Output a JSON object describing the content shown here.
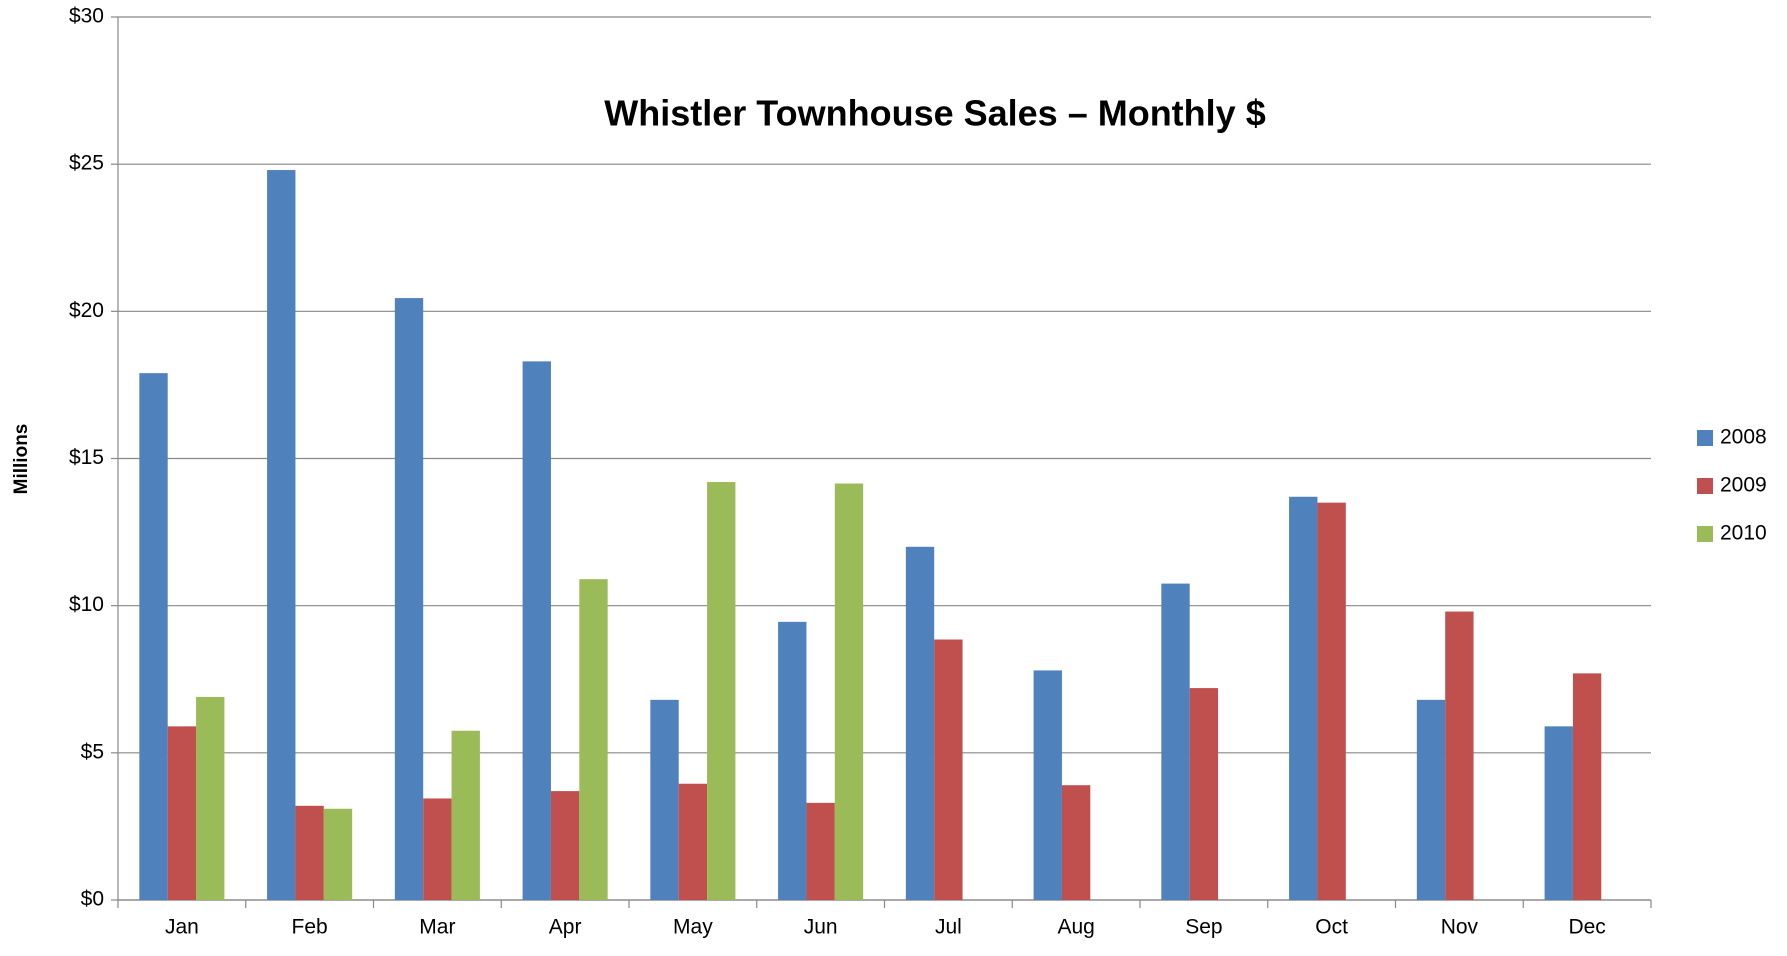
{
  "chart_data": {
    "type": "bar",
    "title": "Whistler Townhouse Sales – Monthly $",
    "ylabel": "Millions",
    "categories": [
      "Jan",
      "Feb",
      "Mar",
      "Apr",
      "May",
      "Jun",
      "Jul",
      "Aug",
      "Sep",
      "Oct",
      "Nov",
      "Dec"
    ],
    "series": [
      {
        "name": "2008",
        "color": "#4f81bd",
        "values": [
          17.9,
          24.8,
          20.45,
          18.3,
          6.8,
          9.45,
          12.0,
          7.8,
          10.75,
          13.7,
          6.8,
          5.9
        ]
      },
      {
        "name": "2009",
        "color": "#c0504d",
        "values": [
          5.9,
          3.2,
          3.45,
          3.7,
          3.95,
          3.3,
          8.85,
          3.9,
          7.2,
          13.5,
          9.8,
          7.7
        ]
      },
      {
        "name": "2010",
        "color": "#9bbb59",
        "values": [
          6.9,
          3.1,
          5.75,
          10.9,
          14.2,
          14.15,
          null,
          null,
          null,
          null,
          null,
          null
        ]
      }
    ],
    "ylim": [
      0,
      30
    ],
    "yticks": [
      {
        "value": 0,
        "label": "$0"
      },
      {
        "value": 5,
        "label": "$5"
      },
      {
        "value": 10,
        "label": "$10"
      },
      {
        "value": 15,
        "label": "$15"
      },
      {
        "value": 20,
        "label": "$20"
      },
      {
        "value": 25,
        "label": "$25"
      },
      {
        "value": 30,
        "label": "$30"
      }
    ],
    "grid": true,
    "legend": "right"
  }
}
